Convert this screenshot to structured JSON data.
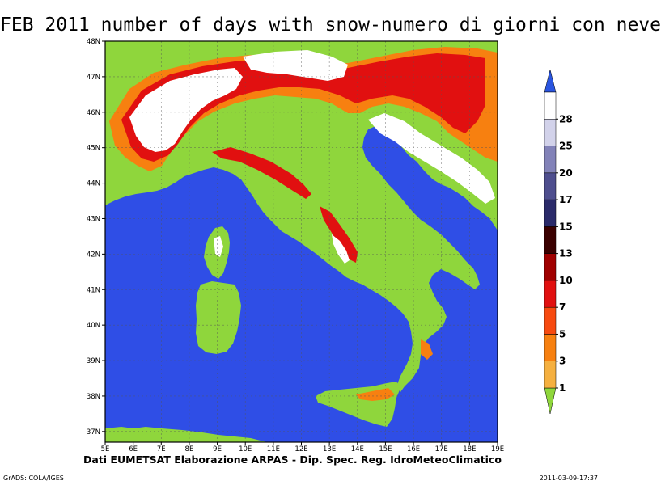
{
  "title": "FEB 2011 number of days with snow-numero di giorni con neve",
  "credit": "Dati EUMETSAT   Elaborazione ARPAS - Dip. Spec. Reg. IdroMeteoClimatico",
  "footer_left": "GrADS: COLA/IGES",
  "footer_right": "2011-03-09-17:37",
  "lat_labels": [
    "48N",
    "47N",
    "46N",
    "45N",
    "44N",
    "43N",
    "42N",
    "41N",
    "40N",
    "39N",
    "38N",
    "37N"
  ],
  "lon_labels": [
    "5E",
    "6E",
    "7E",
    "8E",
    "9E",
    "10E",
    "11E",
    "12E",
    "13E",
    "14E",
    "15E",
    "16E",
    "17E",
    "18E",
    "19E"
  ],
  "colorbar": {
    "labels": [
      "1",
      "3",
      "5",
      "7",
      "10",
      "13",
      "15",
      "17",
      "20",
      "25",
      "28"
    ],
    "colors": [
      "#f5b040",
      "#f78010",
      "#f74a10",
      "#e11010",
      "#a00000",
      "#3a0000",
      "#2a2a6a",
      "#4e4e8e",
      "#8282b8",
      "#d2d2ea",
      "#ffffff"
    ],
    "below_color": "#8fd63c",
    "above_color": "#2a55e0"
  },
  "colors": {
    "sea": "#2f4ee6",
    "land": "#8fd63c",
    "snow_high": "#ffffff",
    "snow_mid": "#e11010",
    "snow_low": "#f78010"
  }
}
